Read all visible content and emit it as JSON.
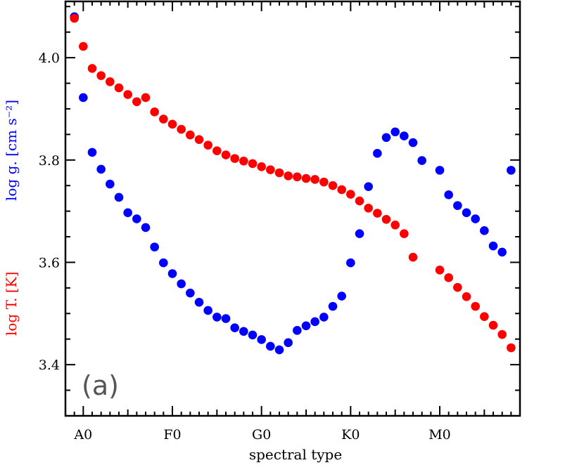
{
  "chart_data": {
    "type": "scatter",
    "xlabel": "spectral type",
    "x_tick_labels": [
      "A0",
      "F0",
      "G0",
      "K0",
      "M0"
    ],
    "x_tick_positions": [
      10,
      20,
      30,
      40,
      50
    ],
    "xlim": [
      8,
      59
    ],
    "ylim": [
      3.3,
      4.11
    ],
    "y_tick_labels": [
      "3.4",
      "3.6",
      "3.8",
      "4.0"
    ],
    "y_ticks": [
      3.4,
      3.6,
      3.8,
      4.0
    ],
    "ylabel_teff": "log T. [K]",
    "ylabel_logg": "log g. [cm s⁻²]",
    "annotation": "(a)",
    "colors": {
      "teff": "#ff0000",
      "logg": "#0000ff"
    },
    "series": [
      {
        "key": "logg",
        "x": [
          9,
          10,
          11,
          12,
          13,
          14,
          15,
          16,
          17,
          18,
          19,
          20,
          21,
          22,
          23,
          24,
          25,
          26,
          27,
          28,
          29,
          30,
          31,
          32,
          33,
          34,
          35,
          36,
          37,
          38,
          39,
          40,
          41,
          42,
          43,
          44,
          45,
          46,
          47,
          48,
          50,
          51,
          52,
          53,
          54,
          55,
          56,
          57,
          58
        ],
        "y": [
          4.08,
          3.922,
          3.815,
          3.782,
          3.753,
          3.727,
          3.697,
          3.685,
          3.668,
          3.63,
          3.599,
          3.578,
          3.558,
          3.54,
          3.522,
          3.506,
          3.493,
          3.49,
          3.472,
          3.465,
          3.458,
          3.449,
          3.436,
          3.429,
          3.443,
          3.467,
          3.476,
          3.484,
          3.493,
          3.514,
          3.534,
          3.599,
          3.656,
          3.748,
          3.813,
          3.844,
          3.855,
          3.847,
          3.834,
          3.799,
          3.78,
          3.732,
          3.711,
          3.697,
          3.685,
          3.662,
          3.632,
          3.62,
          3.78
        ]
      },
      {
        "key": "teff",
        "x": [
          9,
          10,
          11,
          12,
          13,
          14,
          15,
          16,
          17,
          18,
          19,
          20,
          21,
          22,
          23,
          24,
          25,
          26,
          27,
          28,
          29,
          30,
          31,
          32,
          33,
          34,
          35,
          36,
          37,
          38,
          39,
          40,
          41,
          42,
          43,
          44,
          45,
          46,
          47,
          50,
          51,
          52,
          53,
          54,
          55,
          56,
          57,
          58
        ],
        "y": [
          4.077,
          4.022,
          3.979,
          3.965,
          3.953,
          3.941,
          3.928,
          3.914,
          3.922,
          3.894,
          3.88,
          3.87,
          3.86,
          3.849,
          3.84,
          3.829,
          3.818,
          3.81,
          3.803,
          3.798,
          3.793,
          3.787,
          3.781,
          3.775,
          3.769,
          3.767,
          3.764,
          3.762,
          3.757,
          3.75,
          3.742,
          3.733,
          3.72,
          3.706,
          3.696,
          3.684,
          3.673,
          3.656,
          3.61,
          3.585,
          3.57,
          3.551,
          3.533,
          3.514,
          3.494,
          3.477,
          3.459,
          3.433
        ]
      }
    ]
  }
}
